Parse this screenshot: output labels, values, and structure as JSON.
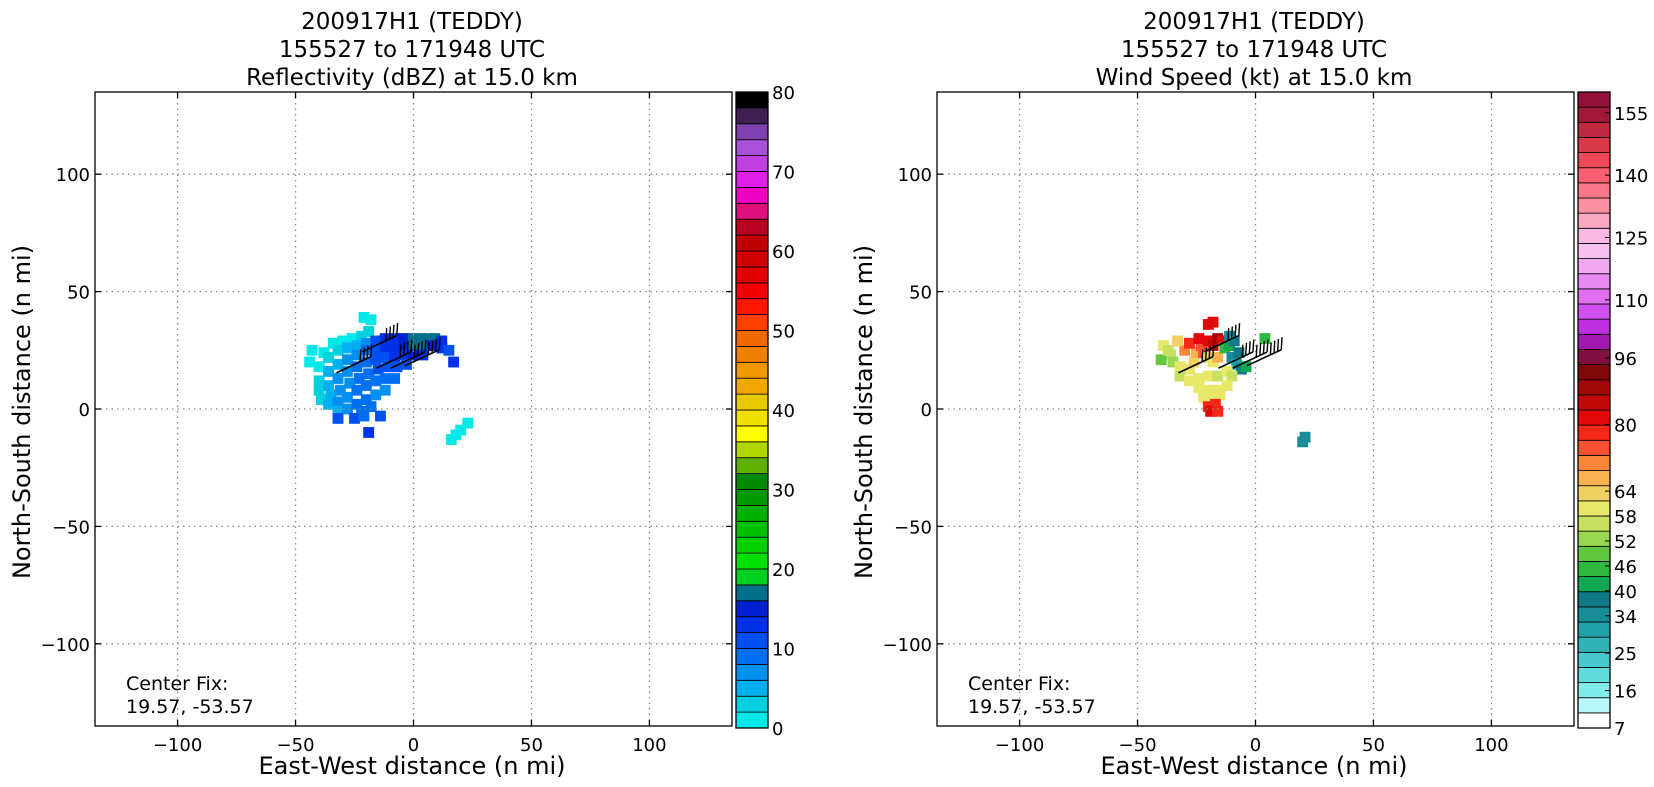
{
  "chart_data": [
    {
      "type": "heatmap",
      "title": [
        "200917H1 (TEDDY)",
        "155527 to 171948 UTC",
        "Reflectivity (dBZ) at 15.0 km"
      ],
      "xlabel": "East-West distance (n mi)",
      "ylabel": "North-South distance (n mi)",
      "xlim": [
        -135,
        135
      ],
      "ylim": [
        -135,
        135
      ],
      "xticks": [
        -100,
        -50,
        0,
        50,
        100
      ],
      "yticks": [
        -100,
        -50,
        0,
        50,
        100
      ],
      "grid": true,
      "annotation": [
        "Center Fix:",
        "19.57, -53.57"
      ],
      "colorbar": {
        "range": [
          0,
          80
        ],
        "tick_labels": [
          "0",
          "10",
          "20",
          "30",
          "40",
          "50",
          "60",
          "70",
          "80"
        ],
        "tick_values": [
          0,
          10,
          20,
          30,
          40,
          50,
          60,
          70,
          80
        ],
        "colors": [
          "#00e8e8",
          "#00d0e0",
          "#00b0f0",
          "#0090f0",
          "#0070f0",
          "#0050f0",
          "#0030e8",
          "#0020d0",
          "#00708a",
          "#00d020",
          "#00e000",
          "#00d000",
          "#00c000",
          "#00b000",
          "#009800",
          "#008800",
          "#60b000",
          "#b0d800",
          "#ffff00",
          "#f0e000",
          "#e8c800",
          "#f0a800",
          "#f09800",
          "#f08000",
          "#f06800",
          "#ff4000",
          "#ff1800",
          "#f00000",
          "#e00000",
          "#d00000",
          "#c00000",
          "#b80020",
          "#e0107a",
          "#f000c0",
          "#e020e8",
          "#c040e0",
          "#a850d8",
          "#8040b0",
          "#402050",
          "#000000"
        ]
      },
      "cells": [
        [
          -38,
          24,
          0
        ],
        [
          -34,
          28,
          0
        ],
        [
          -30,
          29,
          0
        ],
        [
          -26,
          30,
          0
        ],
        [
          -22,
          31,
          1
        ],
        [
          -19,
          33,
          1
        ],
        [
          -18,
          38,
          0
        ],
        [
          -21,
          39,
          0
        ],
        [
          -40,
          18,
          0
        ],
        [
          -36,
          22,
          1
        ],
        [
          -32,
          25,
          1
        ],
        [
          -28,
          26,
          2
        ],
        [
          -24,
          27,
          2
        ],
        [
          -20,
          28,
          3
        ],
        [
          -16,
          29,
          5
        ],
        [
          -12,
          30,
          6
        ],
        [
          -8,
          30,
          6
        ],
        [
          -4,
          30,
          7
        ],
        [
          0,
          30,
          8
        ],
        [
          3,
          30,
          8
        ],
        [
          6,
          30,
          8
        ],
        [
          9,
          30,
          8
        ],
        [
          12,
          29,
          6
        ],
        [
          -40,
          12,
          1
        ],
        [
          -36,
          16,
          2
        ],
        [
          -32,
          19,
          2
        ],
        [
          -28,
          21,
          3
        ],
        [
          -24,
          23,
          3
        ],
        [
          -20,
          25,
          4
        ],
        [
          -16,
          25,
          5
        ],
        [
          -12,
          26,
          6
        ],
        [
          -8,
          26,
          6
        ],
        [
          -4,
          27,
          7
        ],
        [
          0,
          27,
          8
        ],
        [
          4,
          27,
          8
        ],
        [
          8,
          27,
          7
        ],
        [
          12,
          26,
          6
        ],
        [
          15,
          25,
          5
        ],
        [
          -40,
          8,
          1
        ],
        [
          -36,
          10,
          2
        ],
        [
          -32,
          13,
          3
        ],
        [
          -28,
          16,
          3
        ],
        [
          -24,
          18,
          4
        ],
        [
          -20,
          20,
          4
        ],
        [
          -16,
          21,
          5
        ],
        [
          -12,
          22,
          5
        ],
        [
          -8,
          22,
          6
        ],
        [
          -4,
          23,
          6
        ],
        [
          0,
          23,
          7
        ],
        [
          4,
          23,
          6
        ],
        [
          -39,
          4,
          1
        ],
        [
          -35,
          6,
          2
        ],
        [
          -31,
          8,
          3
        ],
        [
          -27,
          11,
          3
        ],
        [
          -23,
          13,
          4
        ],
        [
          -19,
          15,
          4
        ],
        [
          -15,
          17,
          5
        ],
        [
          -11,
          18,
          5
        ],
        [
          -7,
          18,
          5
        ],
        [
          -3,
          19,
          5
        ],
        [
          -36,
          2,
          2
        ],
        [
          -32,
          3,
          3
        ],
        [
          -28,
          5,
          3
        ],
        [
          -24,
          8,
          4
        ],
        [
          -20,
          10,
          4
        ],
        [
          -16,
          12,
          4
        ],
        [
          -12,
          13,
          4
        ],
        [
          -8,
          13,
          4
        ],
        [
          -32,
          -1,
          2
        ],
        [
          -28,
          0,
          3
        ],
        [
          -24,
          2,
          4
        ],
        [
          -20,
          4,
          4
        ],
        [
          -16,
          6,
          3
        ],
        [
          -12,
          8,
          3
        ],
        [
          -22,
          -1,
          4
        ],
        [
          -18,
          1,
          4
        ],
        [
          -25,
          -4,
          5
        ],
        [
          -21,
          -3,
          4
        ],
        [
          -32,
          -4,
          5
        ],
        [
          -19,
          -10,
          6
        ],
        [
          -14,
          -3,
          5
        ],
        [
          16,
          -13,
          0
        ],
        [
          18,
          -11,
          0
        ],
        [
          20,
          -9,
          0
        ],
        [
          23,
          -6,
          0
        ],
        [
          17,
          20,
          6
        ],
        [
          -43,
          25,
          0
        ],
        [
          -44,
          20,
          0
        ]
      ],
      "wind_barbs": [
        [
          -25,
          19
        ],
        [
          -14,
          28
        ],
        [
          -8,
          21
        ],
        [
          -2,
          21
        ],
        [
          4,
          22
        ]
      ]
    },
    {
      "type": "heatmap",
      "title": [
        "200917H1 (TEDDY)",
        "155527 to 171948 UTC",
        "Wind Speed (kt) at 15.0 km"
      ],
      "xlabel": "East-West distance (n mi)",
      "ylabel": "North-South distance (n mi)",
      "xlim": [
        -135,
        135
      ],
      "ylim": [
        -135,
        135
      ],
      "xticks": [
        -100,
        -50,
        0,
        50,
        100
      ],
      "yticks": [
        -100,
        -50,
        0,
        50,
        100
      ],
      "grid": true,
      "annotation": [
        "Center Fix:",
        "19.57, -53.57"
      ],
      "colorbar": {
        "range": [
          7,
          160
        ],
        "tick_labels": [
          "7",
          "16",
          "25",
          "34",
          "40",
          "46",
          "52",
          "58",
          "64",
          "80",
          "96",
          "110",
          "125",
          "140",
          "155"
        ],
        "tick_values": [
          7,
          16,
          25,
          34,
          40,
          46,
          52,
          58,
          64,
          80,
          96,
          110,
          125,
          140,
          155
        ],
        "colors": [
          "#ffffff",
          "#b8f8f8",
          "#80ecec",
          "#60dcdc",
          "#48c8cc",
          "#30b4b8",
          "#20a0a8",
          "#188c98",
          "#107888",
          "#10a850",
          "#30b840",
          "#60c840",
          "#98d850",
          "#c8e060",
          "#e8e868",
          "#f0d060",
          "#f8b050",
          "#f88838",
          "#f85030",
          "#f82818",
          "#e00808",
          "#c00808",
          "#a00808",
          "#800808",
          "#801040",
          "#a018b0",
          "#c030e0",
          "#d050f0",
          "#e070f0",
          "#e888f0",
          "#f0a8f0",
          "#f8c0f0",
          "#f8b8e0",
          "#f8a8c0",
          "#f890a0",
          "#f87888",
          "#f86070",
          "#f04858",
          "#d83848",
          "#c02840",
          "#a01838",
          "#901038"
        ]
      },
      "cells": [
        [
          -39,
          27,
          14
        ],
        [
          -36,
          23,
          13
        ],
        [
          -35,
          20,
          12
        ],
        [
          -32,
          18,
          14
        ],
        [
          -28,
          17,
          14
        ],
        [
          -26,
          20,
          15
        ],
        [
          -25,
          24,
          16
        ],
        [
          -23,
          27,
          18
        ],
        [
          -20,
          29,
          20
        ],
        [
          -18,
          27,
          21
        ],
        [
          -16,
          30,
          22
        ],
        [
          -14,
          29,
          20
        ],
        [
          -30,
          25,
          17
        ],
        [
          -28,
          28,
          19
        ],
        [
          -24,
          30,
          20
        ],
        [
          -22,
          24,
          18
        ],
        [
          -20,
          22,
          15
        ],
        [
          -18,
          20,
          14
        ],
        [
          -16,
          22,
          16
        ],
        [
          -13,
          26,
          10
        ],
        [
          -11,
          27,
          9
        ],
        [
          -10,
          22,
          7
        ],
        [
          -8,
          19,
          6
        ],
        [
          -6,
          17,
          8
        ],
        [
          -4,
          18,
          9
        ],
        [
          -7,
          24,
          8
        ],
        [
          -9,
          29,
          8
        ],
        [
          -11,
          31,
          7
        ],
        [
          -32,
          14,
          13
        ],
        [
          -28,
          12,
          14
        ],
        [
          -24,
          13,
          14
        ],
        [
          -20,
          14,
          14
        ],
        [
          -16,
          14,
          13
        ],
        [
          -12,
          16,
          14
        ],
        [
          -10,
          14,
          13
        ],
        [
          -24,
          9,
          14
        ],
        [
          -20,
          8,
          14
        ],
        [
          -16,
          8,
          14
        ],
        [
          -12,
          10,
          14
        ],
        [
          -22,
          5,
          14
        ],
        [
          -18,
          4,
          14
        ],
        [
          -15,
          6,
          14
        ],
        [
          -20,
          1,
          19
        ],
        [
          -17,
          2,
          19
        ],
        [
          -19,
          -1,
          20
        ],
        [
          -16,
          -1,
          19
        ],
        [
          -20,
          36,
          20
        ],
        [
          -18,
          37,
          20
        ],
        [
          -40,
          21,
          11
        ],
        [
          -37,
          25,
          13
        ],
        [
          4,
          30,
          10
        ],
        [
          -33,
          29,
          15
        ],
        [
          20,
          -14,
          7
        ],
        [
          21,
          -12,
          7
        ]
      ],
      "wind_barbs": [
        [
          -25,
          19
        ],
        [
          -14,
          28
        ],
        [
          -8,
          21
        ],
        [
          -2,
          21
        ],
        [
          4,
          22
        ]
      ]
    }
  ]
}
